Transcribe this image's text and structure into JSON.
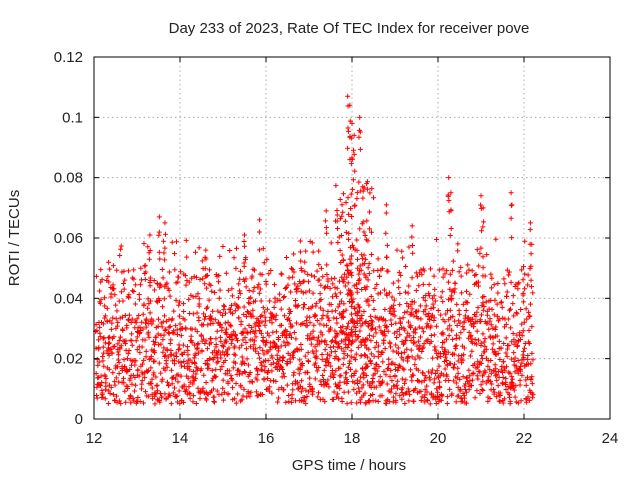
{
  "chart_data": {
    "type": "scatter",
    "title": "Day 233 of 2023, Rate Of TEC Index for receiver pove",
    "xlabel": "GPS time / hours",
    "ylabel": "ROTI / TECUs",
    "xlim": [
      12,
      24
    ],
    "ylim": [
      0,
      0.12
    ],
    "x_ticks": [
      {
        "value": 12,
        "label": "12"
      },
      {
        "value": 14,
        "label": "14"
      },
      {
        "value": 16,
        "label": "16"
      },
      {
        "value": 18,
        "label": "18"
      },
      {
        "value": 20,
        "label": "20"
      },
      {
        "value": 22,
        "label": "22"
      },
      {
        "value": 24,
        "label": "24"
      }
    ],
    "y_ticks": [
      {
        "value": 0,
        "label": "0"
      },
      {
        "value": 0.02,
        "label": "0.02"
      },
      {
        "value": 0.04,
        "label": "0.04"
      },
      {
        "value": 0.06,
        "label": "0.06"
      },
      {
        "value": 0.08,
        "label": "0.08"
      },
      {
        "value": 0.1,
        "label": "0.1"
      },
      {
        "value": 0.12,
        "label": "0.12"
      }
    ],
    "grid": true,
    "marker": "+",
    "colors": {
      "marker": "#ff0000",
      "grid": "#999999",
      "axis": "#000000"
    },
    "series": [
      {
        "name": "ROTI",
        "x_range": [
          12.05,
          22.2
        ],
        "sample_step_hours": 0.025,
        "baseline_range": [
          0.005,
          0.035
        ],
        "typical_peak": 0.06,
        "peaks": [
          {
            "x": 13.52,
            "y": 0.067
          },
          {
            "x": 13.65,
            "y": 0.065
          },
          {
            "x": 13.3,
            "y": 0.061
          },
          {
            "x": 14.6,
            "y": 0.056
          },
          {
            "x": 15.5,
            "y": 0.061
          },
          {
            "x": 15.85,
            "y": 0.066
          },
          {
            "x": 16.8,
            "y": 0.059
          },
          {
            "x": 17.4,
            "y": 0.069
          },
          {
            "x": 17.9,
            "y": 0.107
          },
          {
            "x": 17.95,
            "y": 0.104
          },
          {
            "x": 18.0,
            "y": 0.098
          },
          {
            "x": 18.05,
            "y": 0.094
          },
          {
            "x": 18.18,
            "y": 0.1
          },
          {
            "x": 18.25,
            "y": 0.077
          },
          {
            "x": 18.8,
            "y": 0.071
          },
          {
            "x": 19.4,
            "y": 0.064
          },
          {
            "x": 20.25,
            "y": 0.08
          },
          {
            "x": 20.3,
            "y": 0.075
          },
          {
            "x": 21.0,
            "y": 0.074
          },
          {
            "x": 21.05,
            "y": 0.07
          },
          {
            "x": 21.7,
            "y": 0.075
          },
          {
            "x": 22.15,
            "y": 0.065
          }
        ]
      }
    ]
  }
}
